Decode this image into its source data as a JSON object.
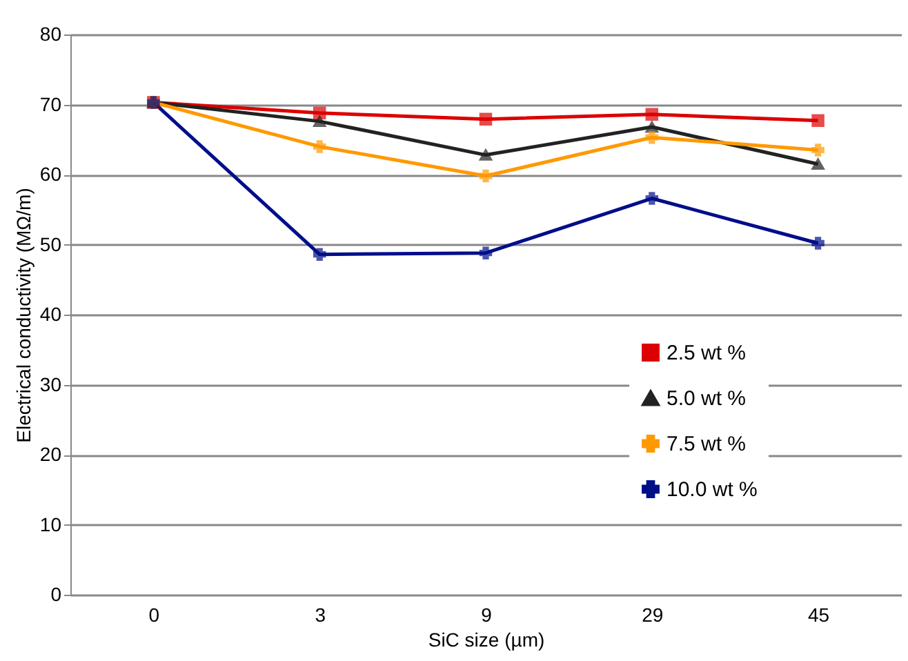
{
  "chart_data": {
    "type": "line",
    "xlabel": "SiC size (µm)",
    "ylabel": "Electrical conductivity (MΩ/m)",
    "categories": [
      "0",
      "3",
      "9",
      "29",
      "45"
    ],
    "series": [
      {
        "name": "2.5 wt %",
        "color": "#dd0000",
        "marker": "square",
        "values": [
          70.3,
          68.8,
          67.9,
          68.6,
          67.7
        ]
      },
      {
        "name": "5.0 wt %",
        "color": "#222222",
        "marker": "triangle",
        "values": [
          70.3,
          67.6,
          62.8,
          66.8,
          61.5
        ]
      },
      {
        "name": "7.5 wt %",
        "color": "#ff9900",
        "marker": "cross",
        "values": [
          70.3,
          64,
          59.8,
          65.3,
          63.5
        ]
      },
      {
        "name": "10.0 wt %",
        "color": "#000e8a",
        "marker": "cross",
        "values": [
          70.3,
          48.6,
          48.8,
          56.6,
          50.2
        ]
      }
    ],
    "ylim": [
      0,
      80
    ],
    "yticks": [
      0,
      10,
      20,
      30,
      40,
      50,
      60,
      70,
      80
    ],
    "grid": "y",
    "legend": "right"
  }
}
